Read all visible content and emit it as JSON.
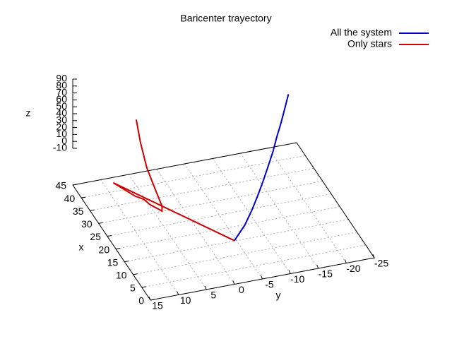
{
  "chart_data": {
    "type": "line3d",
    "title": "Baricenter trayectory",
    "xlabel": "x",
    "ylabel": "y",
    "zlabel": "z",
    "xlim": [
      0,
      45
    ],
    "ylim": [
      -25,
      15
    ],
    "zlim": [
      -10,
      90
    ],
    "xticks": [
      0,
      5,
      10,
      15,
      20,
      25,
      30,
      35,
      40,
      45
    ],
    "yticks": [
      15,
      10,
      5,
      0,
      -5,
      -10,
      -15,
      -20,
      -25
    ],
    "zticks": [
      -10,
      0,
      10,
      20,
      30,
      40,
      50,
      60,
      70,
      80,
      90
    ],
    "grid": true,
    "legend": "top-right",
    "series": [
      {
        "name": "All the system",
        "color": "#0000d0",
        "x": [
          0,
          4,
          8,
          12,
          16,
          20,
          24,
          28,
          32,
          36,
          40
        ],
        "y": [
          0,
          -3.1,
          -5.6,
          -7.9,
          -10.1,
          -12.2,
          -14.3,
          -16.2,
          -18.2,
          -20.1,
          -22
        ],
        "z": [
          0,
          3,
          6,
          9,
          12,
          15,
          18,
          21,
          24,
          27,
          30
        ]
      },
      {
        "name": "Only stars",
        "color": "#d00000",
        "x": [
          0,
          28,
          22,
          20,
          18,
          15,
          16,
          22,
          28,
          35,
          40
        ],
        "y": [
          0,
          13,
          11,
          10,
          9.5,
          8.3,
          8,
          7.5,
          7,
          6,
          5.2
        ],
        "z": [
          0,
          0,
          0,
          1,
          0,
          0,
          3,
          7,
          12,
          22,
          35
        ]
      }
    ]
  }
}
